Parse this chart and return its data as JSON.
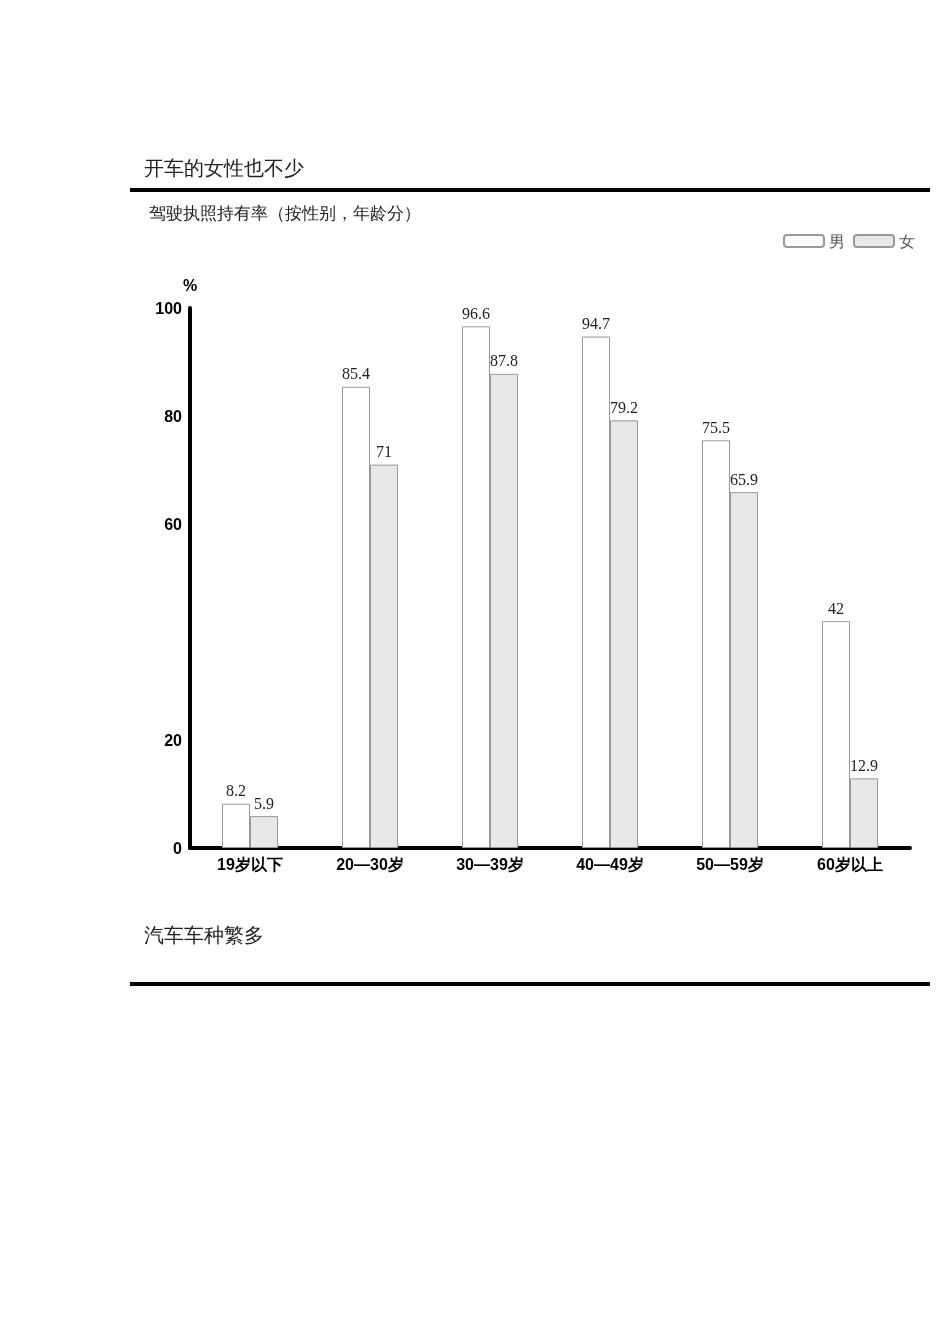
{
  "chart_data": {
    "type": "bar",
    "title": "开车的女性也不少",
    "subtitle": "驾驶执照持有率（按性别，年龄分）",
    "ylabel": "%",
    "categories": [
      "19岁以下",
      "20—30岁",
      "30—39岁",
      "40—49岁",
      "50—59岁",
      "60岁以上"
    ],
    "series": [
      {
        "name": "男",
        "color": "#ffffff",
        "values": [
          8.2,
          85.4,
          96.6,
          94.7,
          75.5,
          42
        ]
      },
      {
        "name": "女",
        "color": "#e8e8e8",
        "values": [
          5.9,
          71,
          87.8,
          79.2,
          65.9,
          12.9
        ]
      }
    ],
    "ylim": [
      0,
      100
    ],
    "yticks": [
      0,
      20,
      60,
      80,
      100
    ],
    "grid": false,
    "legend": "top right",
    "data_labels": true,
    "annotations": [
      "汽车车种繁多"
    ]
  }
}
